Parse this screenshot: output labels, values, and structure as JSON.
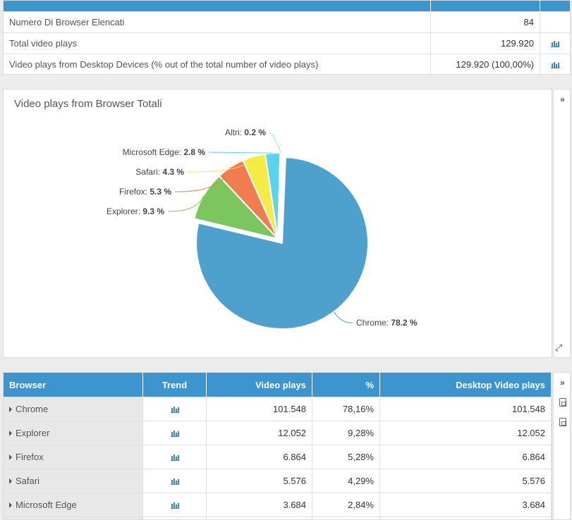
{
  "summary": {
    "rows": [
      {
        "label": "Numero Di Browser Elencati",
        "value": "84",
        "has_icon": false
      },
      {
        "label": "Total video plays",
        "value": "129.920",
        "has_icon": true
      },
      {
        "label": "Video plays from Desktop Devices (% out of the total number of video plays)",
        "value": "129.920 (100,00%)",
        "has_icon": true
      }
    ]
  },
  "chart": {
    "title": "Video plays from Browser Totali",
    "expand_icon": "expand-arrows-icon",
    "collapse_icon": "chevron-double-right-icon"
  },
  "chart_data": {
    "type": "pie",
    "categories": [
      "Chrome",
      "Explorer",
      "Firefox",
      "Safari",
      "Microsoft Edge",
      "Altri"
    ],
    "values": [
      78.2,
      9.3,
      5.3,
      4.3,
      2.8,
      0.2
    ],
    "value_labels": [
      "78.2 %",
      "9.3 %",
      "5.3 %",
      "4.3 %",
      "2.8 %",
      "0.2 %"
    ],
    "colors": [
      "#4ea1cc",
      "#7cc660",
      "#f07d50",
      "#f2ec45",
      "#5ad4ec",
      "#a5e8a0"
    ],
    "title": "Video plays from Browser Totali"
  },
  "table": {
    "headers": [
      "Browser",
      "Trend",
      "Video plays",
      "%",
      "Desktop Video plays"
    ],
    "rows": [
      {
        "browser": "Chrome",
        "plays": "101.548",
        "pct": "78,16%",
        "desktop": "101.548"
      },
      {
        "browser": "Explorer",
        "plays": "12.052",
        "pct": "9,28%",
        "desktop": "12.052"
      },
      {
        "browser": "Firefox",
        "plays": "6.864",
        "pct": "5,28%",
        "desktop": "6.864"
      },
      {
        "browser": "Safari",
        "plays": "5.576",
        "pct": "4,29%",
        "desktop": "5.576"
      },
      {
        "browser": "Microsoft Edge",
        "plays": "3.684",
        "pct": "2,84%",
        "desktop": "3.684"
      },
      {
        "browser": "",
        "plays": "",
        "pct": "",
        "desktop": ""
      }
    ],
    "side_icons": [
      "chevron-double-right-icon",
      "pdf-export-icon",
      "excel-export-icon"
    ]
  },
  "colors": {
    "header_blue": "#3d95cf",
    "icon_blue": "#3d84c6"
  }
}
